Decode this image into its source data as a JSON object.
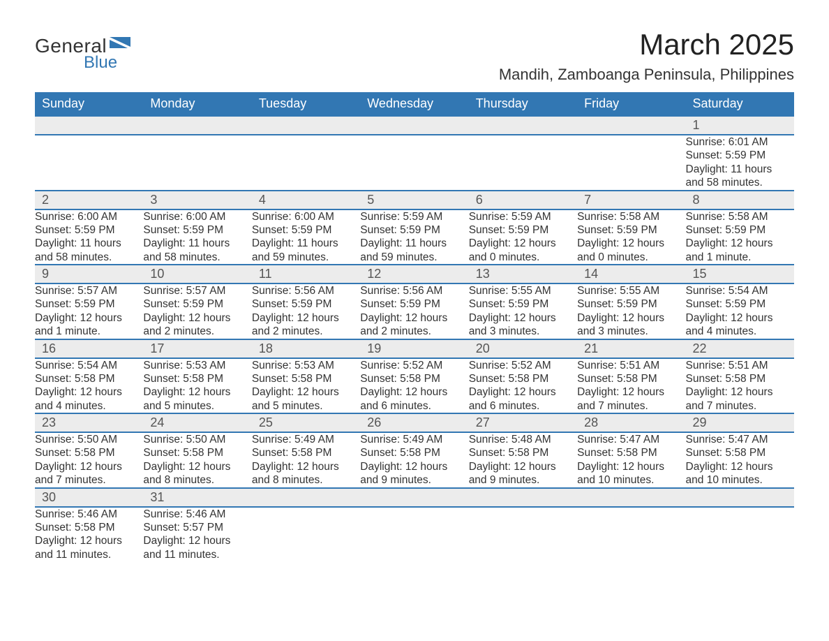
{
  "logo": {
    "text1": "General",
    "text2": "Blue",
    "flag_color": "#3277b3"
  },
  "title": "March 2025",
  "location": "Mandih, Zamboanga Peninsula, Philippines",
  "colors": {
    "header_bg": "#3277b3",
    "header_text": "#ffffff",
    "daynum_bg": "#ececec",
    "row_border": "#3277b3",
    "body_text": "#333333",
    "background": "#ffffff"
  },
  "calendar": {
    "type": "table",
    "columns": [
      "Sunday",
      "Monday",
      "Tuesday",
      "Wednesday",
      "Thursday",
      "Friday",
      "Saturday"
    ],
    "weeks": [
      [
        null,
        null,
        null,
        null,
        null,
        null,
        {
          "day": "1",
          "sunrise": "Sunrise: 6:01 AM",
          "sunset": "Sunset: 5:59 PM",
          "daylight1": "Daylight: 11 hours",
          "daylight2": "and 58 minutes."
        }
      ],
      [
        {
          "day": "2",
          "sunrise": "Sunrise: 6:00 AM",
          "sunset": "Sunset: 5:59 PM",
          "daylight1": "Daylight: 11 hours",
          "daylight2": "and 58 minutes."
        },
        {
          "day": "3",
          "sunrise": "Sunrise: 6:00 AM",
          "sunset": "Sunset: 5:59 PM",
          "daylight1": "Daylight: 11 hours",
          "daylight2": "and 58 minutes."
        },
        {
          "day": "4",
          "sunrise": "Sunrise: 6:00 AM",
          "sunset": "Sunset: 5:59 PM",
          "daylight1": "Daylight: 11 hours",
          "daylight2": "and 59 minutes."
        },
        {
          "day": "5",
          "sunrise": "Sunrise: 5:59 AM",
          "sunset": "Sunset: 5:59 PM",
          "daylight1": "Daylight: 11 hours",
          "daylight2": "and 59 minutes."
        },
        {
          "day": "6",
          "sunrise": "Sunrise: 5:59 AM",
          "sunset": "Sunset: 5:59 PM",
          "daylight1": "Daylight: 12 hours",
          "daylight2": "and 0 minutes."
        },
        {
          "day": "7",
          "sunrise": "Sunrise: 5:58 AM",
          "sunset": "Sunset: 5:59 PM",
          "daylight1": "Daylight: 12 hours",
          "daylight2": "and 0 minutes."
        },
        {
          "day": "8",
          "sunrise": "Sunrise: 5:58 AM",
          "sunset": "Sunset: 5:59 PM",
          "daylight1": "Daylight: 12 hours",
          "daylight2": "and 1 minute."
        }
      ],
      [
        {
          "day": "9",
          "sunrise": "Sunrise: 5:57 AM",
          "sunset": "Sunset: 5:59 PM",
          "daylight1": "Daylight: 12 hours",
          "daylight2": "and 1 minute."
        },
        {
          "day": "10",
          "sunrise": "Sunrise: 5:57 AM",
          "sunset": "Sunset: 5:59 PM",
          "daylight1": "Daylight: 12 hours",
          "daylight2": "and 2 minutes."
        },
        {
          "day": "11",
          "sunrise": "Sunrise: 5:56 AM",
          "sunset": "Sunset: 5:59 PM",
          "daylight1": "Daylight: 12 hours",
          "daylight2": "and 2 minutes."
        },
        {
          "day": "12",
          "sunrise": "Sunrise: 5:56 AM",
          "sunset": "Sunset: 5:59 PM",
          "daylight1": "Daylight: 12 hours",
          "daylight2": "and 2 minutes."
        },
        {
          "day": "13",
          "sunrise": "Sunrise: 5:55 AM",
          "sunset": "Sunset: 5:59 PM",
          "daylight1": "Daylight: 12 hours",
          "daylight2": "and 3 minutes."
        },
        {
          "day": "14",
          "sunrise": "Sunrise: 5:55 AM",
          "sunset": "Sunset: 5:59 PM",
          "daylight1": "Daylight: 12 hours",
          "daylight2": "and 3 minutes."
        },
        {
          "day": "15",
          "sunrise": "Sunrise: 5:54 AM",
          "sunset": "Sunset: 5:59 PM",
          "daylight1": "Daylight: 12 hours",
          "daylight2": "and 4 minutes."
        }
      ],
      [
        {
          "day": "16",
          "sunrise": "Sunrise: 5:54 AM",
          "sunset": "Sunset: 5:58 PM",
          "daylight1": "Daylight: 12 hours",
          "daylight2": "and 4 minutes."
        },
        {
          "day": "17",
          "sunrise": "Sunrise: 5:53 AM",
          "sunset": "Sunset: 5:58 PM",
          "daylight1": "Daylight: 12 hours",
          "daylight2": "and 5 minutes."
        },
        {
          "day": "18",
          "sunrise": "Sunrise: 5:53 AM",
          "sunset": "Sunset: 5:58 PM",
          "daylight1": "Daylight: 12 hours",
          "daylight2": "and 5 minutes."
        },
        {
          "day": "19",
          "sunrise": "Sunrise: 5:52 AM",
          "sunset": "Sunset: 5:58 PM",
          "daylight1": "Daylight: 12 hours",
          "daylight2": "and 6 minutes."
        },
        {
          "day": "20",
          "sunrise": "Sunrise: 5:52 AM",
          "sunset": "Sunset: 5:58 PM",
          "daylight1": "Daylight: 12 hours",
          "daylight2": "and 6 minutes."
        },
        {
          "day": "21",
          "sunrise": "Sunrise: 5:51 AM",
          "sunset": "Sunset: 5:58 PM",
          "daylight1": "Daylight: 12 hours",
          "daylight2": "and 7 minutes."
        },
        {
          "day": "22",
          "sunrise": "Sunrise: 5:51 AM",
          "sunset": "Sunset: 5:58 PM",
          "daylight1": "Daylight: 12 hours",
          "daylight2": "and 7 minutes."
        }
      ],
      [
        {
          "day": "23",
          "sunrise": "Sunrise: 5:50 AM",
          "sunset": "Sunset: 5:58 PM",
          "daylight1": "Daylight: 12 hours",
          "daylight2": "and 7 minutes."
        },
        {
          "day": "24",
          "sunrise": "Sunrise: 5:50 AM",
          "sunset": "Sunset: 5:58 PM",
          "daylight1": "Daylight: 12 hours",
          "daylight2": "and 8 minutes."
        },
        {
          "day": "25",
          "sunrise": "Sunrise: 5:49 AM",
          "sunset": "Sunset: 5:58 PM",
          "daylight1": "Daylight: 12 hours",
          "daylight2": "and 8 minutes."
        },
        {
          "day": "26",
          "sunrise": "Sunrise: 5:49 AM",
          "sunset": "Sunset: 5:58 PM",
          "daylight1": "Daylight: 12 hours",
          "daylight2": "and 9 minutes."
        },
        {
          "day": "27",
          "sunrise": "Sunrise: 5:48 AM",
          "sunset": "Sunset: 5:58 PM",
          "daylight1": "Daylight: 12 hours",
          "daylight2": "and 9 minutes."
        },
        {
          "day": "28",
          "sunrise": "Sunrise: 5:47 AM",
          "sunset": "Sunset: 5:58 PM",
          "daylight1": "Daylight: 12 hours",
          "daylight2": "and 10 minutes."
        },
        {
          "day": "29",
          "sunrise": "Sunrise: 5:47 AM",
          "sunset": "Sunset: 5:58 PM",
          "daylight1": "Daylight: 12 hours",
          "daylight2": "and 10 minutes."
        }
      ],
      [
        {
          "day": "30",
          "sunrise": "Sunrise: 5:46 AM",
          "sunset": "Sunset: 5:58 PM",
          "daylight1": "Daylight: 12 hours",
          "daylight2": "and 11 minutes."
        },
        {
          "day": "31",
          "sunrise": "Sunrise: 5:46 AM",
          "sunset": "Sunset: 5:57 PM",
          "daylight1": "Daylight: 12 hours",
          "daylight2": "and 11 minutes."
        },
        null,
        null,
        null,
        null,
        null
      ]
    ]
  }
}
